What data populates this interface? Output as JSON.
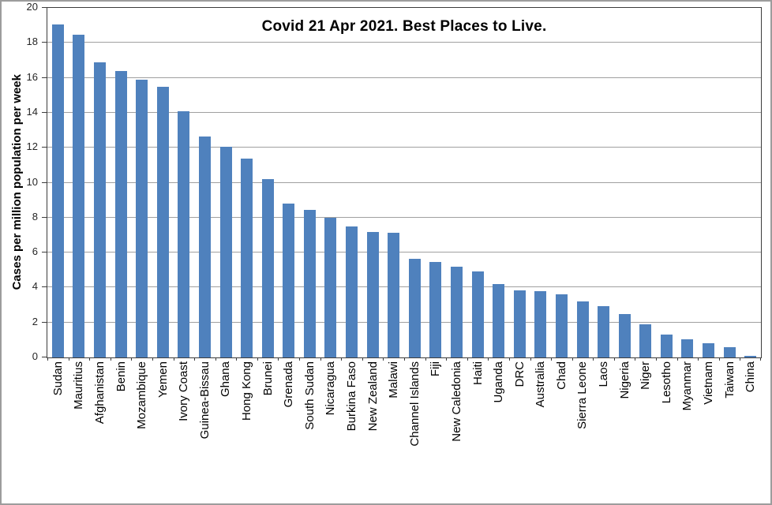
{
  "chart_data": {
    "type": "bar",
    "title": "Covid 21 Apr 2021. Best Places to Live.",
    "ylabel": "Cases per million population per week",
    "xlabel": "",
    "ylim": [
      0,
      20
    ],
    "yticks": [
      0,
      2,
      4,
      6,
      8,
      10,
      12,
      14,
      16,
      18,
      20
    ],
    "grid": true,
    "legend": false,
    "bar_color": "#4f81bd",
    "categories": [
      "Sudan",
      "Mauritius",
      "Afghanistan",
      "Benin",
      "Mozambique",
      "Yemen",
      "Ivory Coast",
      "Guinea-Bissau",
      "Ghana",
      "Hong Kong",
      "Brunei",
      "Grenada",
      "South Sudan",
      "Nicaragua",
      "Burkina Faso",
      "New Zealand",
      "Malawi",
      "Channel Islands",
      "Fiji",
      "New Caledonia",
      "Haiti",
      "Uganda",
      "DRC",
      "Australia",
      "Chad",
      "Sierra Leone",
      "Laos",
      "Nigeria",
      "Niger",
      "Lesotho",
      "Myanmar",
      "Vietnam",
      "Taiwan",
      "China"
    ],
    "values": [
      19.05,
      18.45,
      16.9,
      16.4,
      15.9,
      15.5,
      14.1,
      12.65,
      12.05,
      11.4,
      10.2,
      8.8,
      8.45,
      8.0,
      7.5,
      7.2,
      7.15,
      5.65,
      5.45,
      5.2,
      4.9,
      4.2,
      3.85,
      3.8,
      3.6,
      3.2,
      2.95,
      2.5,
      1.9,
      1.3,
      1.05,
      0.8,
      0.6,
      0.1
    ]
  }
}
